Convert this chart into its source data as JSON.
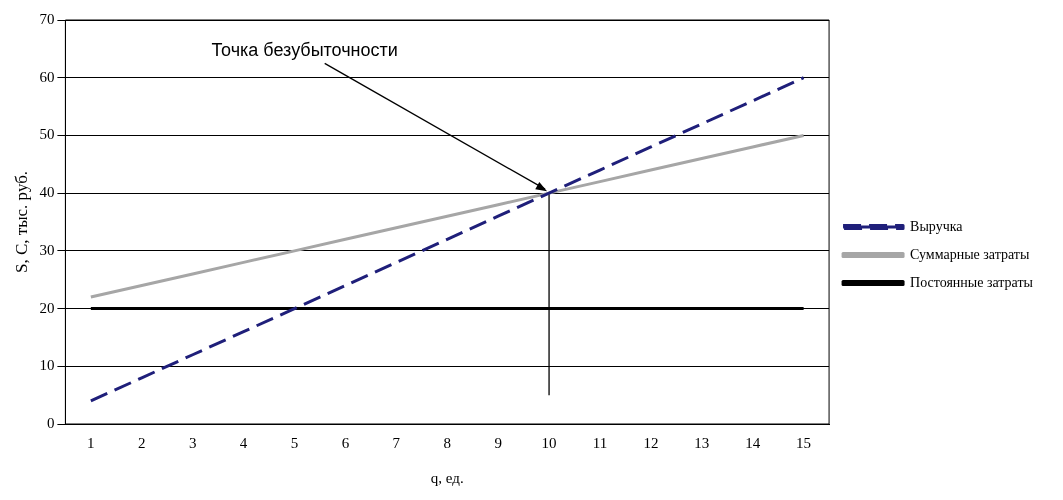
{
  "chart_data": {
    "type": "line",
    "xlabel": "q, ед.",
    "ylabel": "S, C, тыс. руб.",
    "annotations": [
      {
        "text": "Точка безубыточности",
        "x": 10,
        "y": 40
      }
    ],
    "x": [
      1,
      2,
      3,
      4,
      5,
      6,
      7,
      8,
      9,
      10,
      11,
      12,
      13,
      14,
      15
    ],
    "series": [
      {
        "name": "Выручка",
        "color": "#1f1f7a",
        "line_style": "dashed",
        "values": [
          4,
          8,
          12,
          16,
          20,
          24,
          28,
          32,
          36,
          40,
          44,
          48,
          52,
          56,
          60
        ]
      },
      {
        "name": "Суммарные затраты",
        "color": "#a6a6a6",
        "line_style": "solid",
        "values": [
          22,
          24,
          26,
          28,
          30,
          32,
          34,
          36,
          38,
          40,
          42,
          44,
          46,
          48,
          50
        ]
      },
      {
        "name": "Постоянные затраты",
        "color": "#000000",
        "line_style": "solid",
        "values": [
          20,
          20,
          20,
          20,
          20,
          20,
          20,
          20,
          20,
          20,
          20,
          20,
          20,
          20,
          20
        ]
      },
      {
        "color": "#000000",
        "line_style": "solid",
        "x": [
          10,
          10
        ],
        "values": [
          5,
          40
        ]
      }
    ],
    "xlim": [
      0.5,
      15.5
    ],
    "xticks": [
      1,
      2,
      3,
      4,
      5,
      6,
      7,
      8,
      9,
      10,
      11,
      12,
      13,
      14,
      15
    ],
    "ylim": [
      0,
      70
    ],
    "yticks": [
      0,
      10,
      20,
      30,
      40,
      50,
      60,
      70
    ],
    "grid": "y",
    "legend": "right",
    "marker": "none"
  }
}
